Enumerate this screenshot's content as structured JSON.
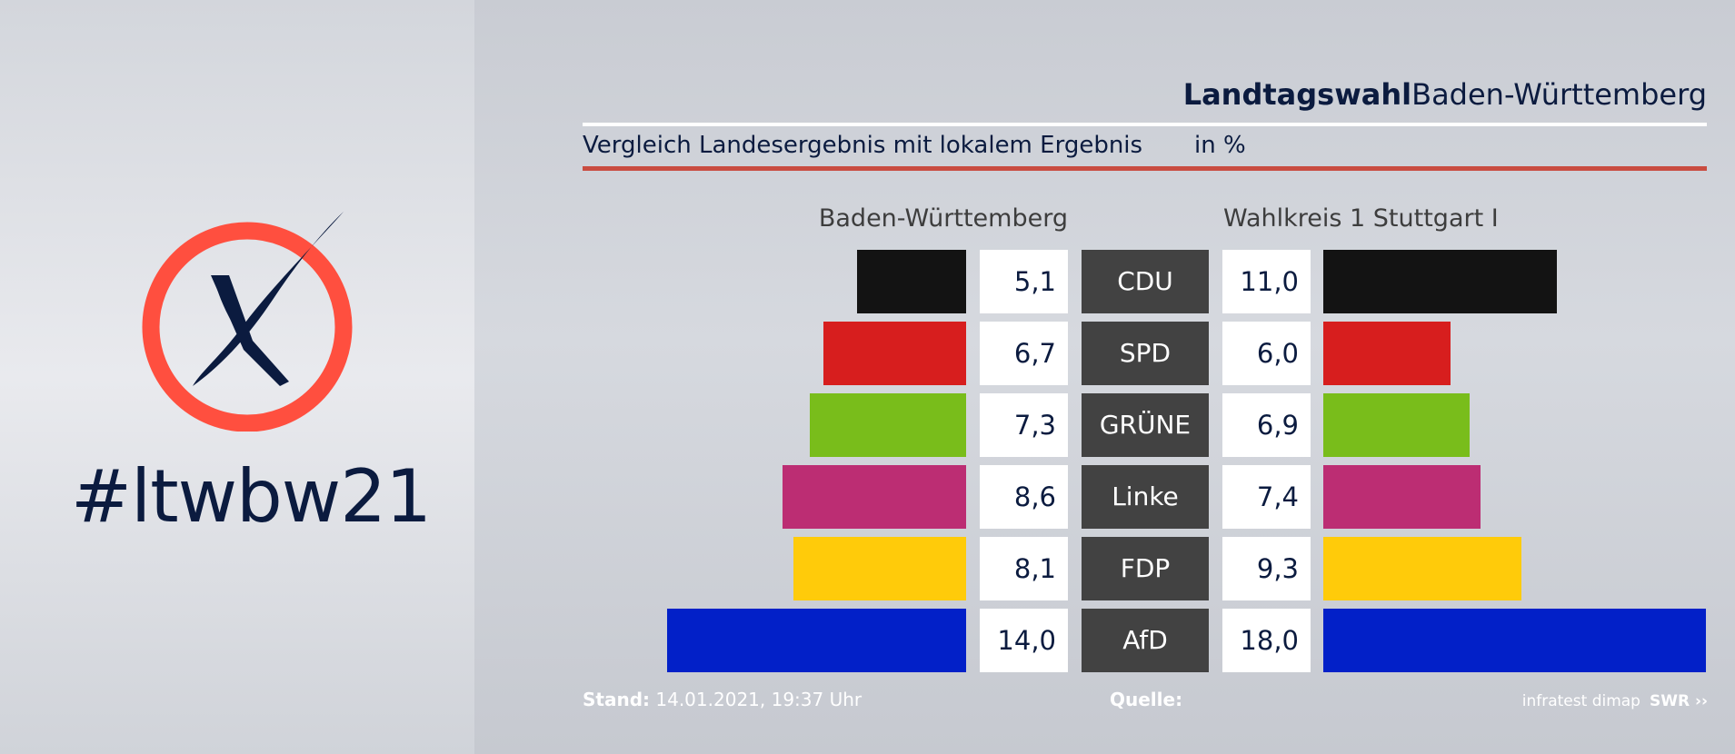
{
  "hashtag": "#ltwbw21",
  "header": {
    "title_bold": "Landtagswahl",
    "title_regular": "Baden-Württemberg"
  },
  "subtitle": "Vergleich Landesergebnis mit lokalem Ergebnis",
  "unit": "in %",
  "colors": {
    "accent_rule": "#c94c40",
    "logo_ring": "#ff4f3f",
    "logo_cross": "#0b1b3f"
  },
  "chart_data": {
    "type": "bar",
    "categories": [
      "CDU",
      "SPD",
      "GRÜNE",
      "Linke",
      "FDP",
      "AfD"
    ],
    "colors": [
      "#131313",
      "#d71e1e",
      "#79bd1b",
      "#bc2d73",
      "#ffcb0a",
      "#0220c8"
    ],
    "series": [
      {
        "name": "Baden-Württemberg",
        "values": [
          5.1,
          6.7,
          7.3,
          8.6,
          8.1,
          14.0
        ],
        "labels": [
          "5,1",
          "6,7",
          "7,3",
          "8,6",
          "8,1",
          "14,0"
        ]
      },
      {
        "name": "Wahlkreis 1 Stuttgart I",
        "values": [
          11.0,
          6.0,
          6.9,
          7.4,
          9.3,
          18.0
        ],
        "labels": [
          "11,0",
          "6,0",
          "6,9",
          "7,4",
          "9,3",
          "18,0"
        ]
      }
    ]
  },
  "footer": {
    "stand_label": "Stand:",
    "stand_value": "14.01.2021, 19:37 Uhr",
    "quelle_label": "Quelle:",
    "source": "infratest dimap",
    "broadcaster": "SWR ››"
  }
}
